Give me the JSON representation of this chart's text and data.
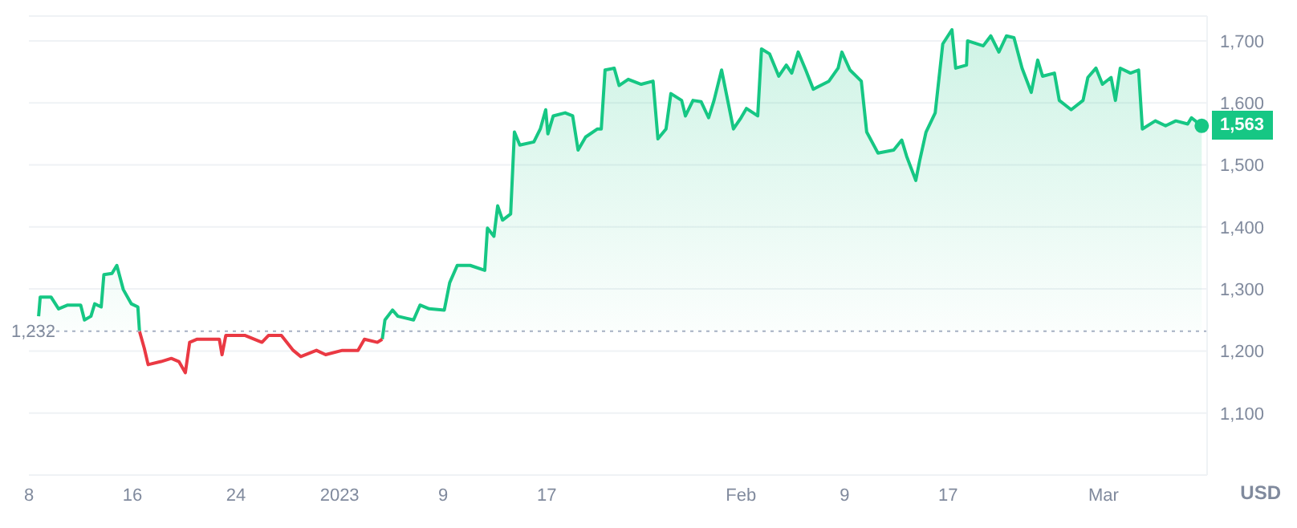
{
  "chart_data": {
    "type": "area",
    "ylabel": "USD",
    "xlim": [
      "2022-12-08",
      "2023-03-09"
    ],
    "xticks": [
      {
        "value": "2022-12-08",
        "label": "8"
      },
      {
        "value": "2022-12-16",
        "label": "16"
      },
      {
        "value": "2022-12-24",
        "label": "24"
      },
      {
        "value": "2023-01-01",
        "label": "2023"
      },
      {
        "value": "2023-01-09",
        "label": "9"
      },
      {
        "value": "2023-01-17",
        "label": "17"
      },
      {
        "value": "2023-02-01",
        "label": "Feb"
      },
      {
        "value": "2023-02-09",
        "label": "9"
      },
      {
        "value": "2023-02-17",
        "label": "17"
      },
      {
        "value": "2023-03-01",
        "label": "Mar"
      }
    ],
    "ylim": [
      1000,
      1740
    ],
    "yticks": [
      {
        "value": 1100,
        "label": "1,100"
      },
      {
        "value": 1200,
        "label": "1,200"
      },
      {
        "value": 1300,
        "label": "1,300"
      },
      {
        "value": 1400,
        "label": "1,400"
      },
      {
        "value": 1500,
        "label": "1,500"
      },
      {
        "value": 1600,
        "label": "1,600"
      },
      {
        "value": 1700,
        "label": "1,700"
      }
    ],
    "grid": "y",
    "ref_lines": [
      {
        "axis": "y",
        "value": 1232,
        "label": "1,232",
        "color": "#a6b0c3",
        "line_style": "dotted"
      }
    ],
    "annotations": [
      {
        "text": "1,563",
        "x": "2023-03-08T14:00",
        "y": 1563
      }
    ],
    "x": [
      "2022-12-08T18:00",
      "2022-12-08T21:00",
      "2022-12-09T17:00",
      "2022-12-10T07:00",
      "2022-12-11T00:00",
      "2022-12-12T00:00",
      "2022-12-12T07:00",
      "2022-12-12T19:00",
      "2022-12-13T02:00",
      "2022-12-13T14:00",
      "2022-12-13T19:00",
      "2022-12-14T10:00",
      "2022-12-14T19:00",
      "2022-12-15T07:00",
      "2022-12-15T22:00",
      "2022-12-16T10:00",
      "2022-12-16T13:00",
      "2022-12-16T22:00",
      "2022-12-17T05:00",
      "2022-12-18T05:00",
      "2022-12-19T00:00",
      "2022-12-19T14:00",
      "2022-12-20T02:00",
      "2022-12-20T10:00",
      "2022-12-21T00:00",
      "2022-12-22T17:00",
      "2022-12-22T22:00",
      "2022-12-23T05:00",
      "2022-12-24T17:00",
      "2022-12-26T00:00",
      "2022-12-26T12:00",
      "2022-12-27T12:00",
      "2022-12-28T10:00",
      "2022-12-29T00:00",
      "2022-12-30T05:00",
      "2022-12-30T22:00",
      "2023-01-01T05:00",
      "2023-01-02T10:00",
      "2023-01-02T22:00",
      "2023-01-03T22:00",
      "2023-01-04T07:00",
      "2023-01-04T12:00",
      "2023-01-05T02:00",
      "2023-01-05T12:00",
      "2023-01-06T17:00",
      "2023-01-07T05:00",
      "2023-01-07T22:00",
      "2023-01-09T02:00",
      "2023-01-09T12:00",
      "2023-01-10T02:00",
      "2023-01-11T02:00",
      "2023-01-12T05:00",
      "2023-01-12T10:00",
      "2023-01-12T22:00",
      "2023-01-13T05:00",
      "2023-01-13T14:00",
      "2023-01-14T05:00",
      "2023-01-14T12:00",
      "2023-01-14T22:00",
      "2023-01-16T00:00",
      "2023-01-16T12:00",
      "2023-01-16T22:00",
      "2023-01-17T02:00",
      "2023-01-17T12:00",
      "2023-01-18T10:00",
      "2023-01-19T00:00",
      "2023-01-19T10:00",
      "2023-01-20T00:00",
      "2023-01-20T22:00",
      "2023-01-21T05:00",
      "2023-01-21T12:00",
      "2023-01-22T05:00",
      "2023-01-22T14:00",
      "2023-01-23T07:00",
      "2023-01-24T07:00",
      "2023-01-25T05:00",
      "2023-01-25T14:00",
      "2023-01-26T05:00",
      "2023-01-26T14:00",
      "2023-01-27T10:00",
      "2023-01-27T17:00",
      "2023-01-28T07:00",
      "2023-01-28T22:00",
      "2023-01-29T12:00",
      "2023-01-29T22:00",
      "2023-01-30T12:00",
      "2023-01-31T10:00",
      "2023-02-01T00:00",
      "2023-02-01T10:00",
      "2023-02-02T07:00",
      "2023-02-02T14:00",
      "2023-02-03T05:00",
      "2023-02-03T22:00",
      "2023-02-04T12:00",
      "2023-02-04T22:00",
      "2023-02-05T10:00",
      "2023-02-06T00:00",
      "2023-02-06T14:00",
      "2023-02-07T19:00",
      "2023-02-08T12:00",
      "2023-02-08T19:00",
      "2023-02-09T10:00",
      "2023-02-10T07:00",
      "2023-02-10T17:00",
      "2023-02-11T14:00",
      "2023-02-12T19:00",
      "2023-02-13T10:00",
      "2023-02-13T19:00",
      "2023-02-14T12:00",
      "2023-02-14T19:00",
      "2023-02-15T07:00",
      "2023-02-16T00:00",
      "2023-02-16T14:00",
      "2023-02-17T07:00",
      "2023-02-17T14:00",
      "2023-02-18T10:00",
      "2023-02-18T12:00",
      "2023-02-19T17:00",
      "2023-02-20T07:00",
      "2023-02-20T22:00",
      "2023-02-21T12:00",
      "2023-02-22T02:00",
      "2023-02-22T17:00",
      "2023-02-23T10:00",
      "2023-02-23T22:00",
      "2023-02-24T07:00",
      "2023-02-25T05:00",
      "2023-02-25T14:00",
      "2023-02-26T12:00",
      "2023-02-27T10:00",
      "2023-02-27T19:00",
      "2023-02-28T10:00",
      "2023-02-28T22:00",
      "2023-03-01T14:00",
      "2023-03-01T22:00",
      "2023-03-02T07:00",
      "2023-03-03T02:00",
      "2023-03-03T17:00",
      "2023-03-04T00:00",
      "2023-03-05T00:00",
      "2023-03-05T19:00",
      "2023-03-06T14:00",
      "2023-03-07T12:00",
      "2023-03-07T19:00",
      "2023-03-08T14:00"
    ],
    "series": [
      {
        "color": "#16c784",
        "values": [
          1256,
          1287,
          1287,
          1268,
          1274,
          1274,
          1250,
          1256,
          1276,
          1271,
          1323,
          1325,
          1338,
          1299,
          1276,
          1271,
          1232,
          null,
          null,
          null,
          null,
          null,
          null,
          null,
          null,
          null,
          null,
          null,
          null,
          null,
          null,
          null,
          null,
          null,
          null,
          null,
          null,
          null,
          null,
          null,
          1219,
          1250,
          1266,
          1256,
          1250,
          1274,
          1268,
          1266,
          1310,
          1338,
          1338,
          1330,
          1398,
          1385,
          1434,
          1411,
          1421,
          1553,
          1532,
          1537,
          1558,
          1589,
          1550,
          1579,
          1584,
          1579,
          1524,
          1545,
          1558,
          1558,
          1653,
          1656,
          1628,
          1638,
          1630,
          1635,
          1542,
          1558,
          1615,
          1604,
          1579,
          1604,
          1602,
          1576,
          1604,
          1653,
          1558,
          1576,
          1591,
          1579,
          1687,
          1679,
          1643,
          1661,
          1648,
          1682,
          1653,
          1622,
          1635,
          1656,
          1682,
          1653,
          1635,
          1553,
          1519,
          1524,
          1540,
          1514,
          1475,
          1506,
          1553,
          1584,
          1695,
          1718,
          1656,
          1661,
          1700,
          1692,
          1708,
          1682,
          1708,
          1705,
          1656,
          1617,
          1669,
          1643,
          1648,
          1604,
          1589,
          1604,
          1641,
          1656,
          1630,
          1641,
          1604,
          1656,
          1648,
          1653,
          1558,
          1571,
          1563,
          1571,
          1566,
          1576,
          1563
        ]
      },
      {
        "type": "line",
        "color": "#ea3943",
        "values": [
          null,
          null,
          null,
          null,
          null,
          null,
          null,
          null,
          null,
          null,
          null,
          null,
          null,
          null,
          null,
          null,
          1232,
          1204,
          1178,
          1183,
          1188,
          1183,
          1165,
          1214,
          1219,
          1219,
          1194,
          1225,
          1225,
          1214,
          1225,
          1225,
          1201,
          1191,
          1201,
          1194,
          1201,
          1201,
          1219,
          1214,
          1219,
          null,
          null,
          null,
          null,
          null,
          null,
          null,
          null,
          null,
          null,
          null,
          null,
          null,
          null,
          null,
          null,
          null,
          null,
          null,
          null,
          null,
          null,
          null,
          null,
          null,
          null,
          null,
          null,
          null,
          null,
          null,
          null,
          null,
          null,
          null,
          null,
          null,
          null,
          null,
          null,
          null,
          null,
          null,
          null,
          null,
          null,
          null,
          null,
          null,
          null,
          null,
          null,
          null,
          null,
          null,
          null,
          null,
          null,
          null,
          null,
          null,
          null,
          null,
          null,
          null,
          null,
          null,
          null,
          null,
          null,
          null,
          null,
          null,
          null,
          null,
          null,
          null,
          null,
          null,
          null,
          null,
          null,
          null,
          null,
          null,
          null,
          null,
          null,
          null,
          null,
          null,
          null,
          null,
          null,
          null,
          null,
          null,
          null,
          null,
          null,
          null,
          null,
          null,
          null
        ]
      }
    ]
  }
}
